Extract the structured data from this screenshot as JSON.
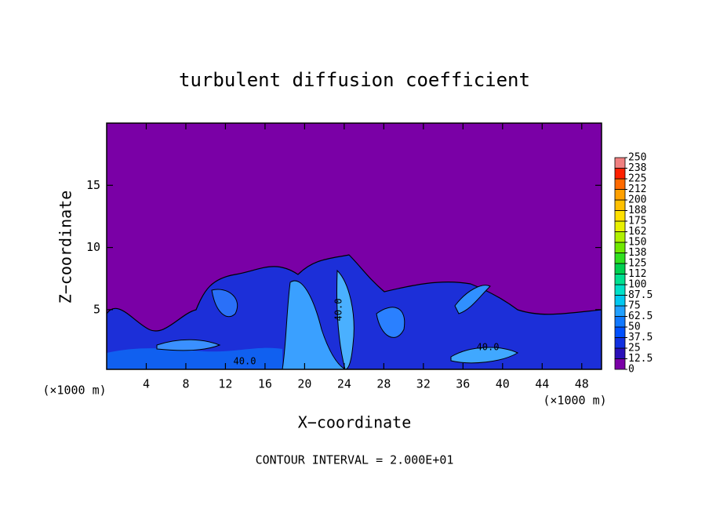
{
  "chart_data": {
    "type": "contour",
    "title": "turbulent diffusion coefficient",
    "x_label": "X−coordinate",
    "y_label": "Z−coordinate",
    "x_unit_labels": [
      "(×1000 m)",
      "(×1000 m)"
    ],
    "footer": "CONTOUR INTERVAL = 2.000E+01",
    "contour_labels": [
      "40.0",
      "40.0",
      "40.0"
    ],
    "xlim": [
      0,
      50
    ],
    "xticks": [
      4,
      8,
      12,
      16,
      20,
      24,
      28,
      32,
      36,
      40,
      44,
      48
    ],
    "ylim": [
      0.2,
      20
    ],
    "yticks": [
      5,
      10,
      15
    ],
    "colorbar": {
      "levels": [
        0,
        12.5,
        25,
        37.5,
        50,
        62.5,
        75,
        87.5,
        100,
        112,
        125,
        138,
        150,
        162,
        175,
        188,
        200,
        212,
        225,
        238,
        250
      ],
      "colors": [
        "#7a00a6",
        "#2a10b8",
        "#1030e0",
        "#0050ff",
        "#1078ff",
        "#20a0ff",
        "#00c8f0",
        "#00e0c8",
        "#00e090",
        "#00d050",
        "#30e020",
        "#70e800",
        "#b0f000",
        "#e8f000",
        "#ffe000",
        "#ffc000",
        "#ffa000",
        "#ff6a00",
        "#ff2000",
        "#f08080"
      ]
    }
  }
}
